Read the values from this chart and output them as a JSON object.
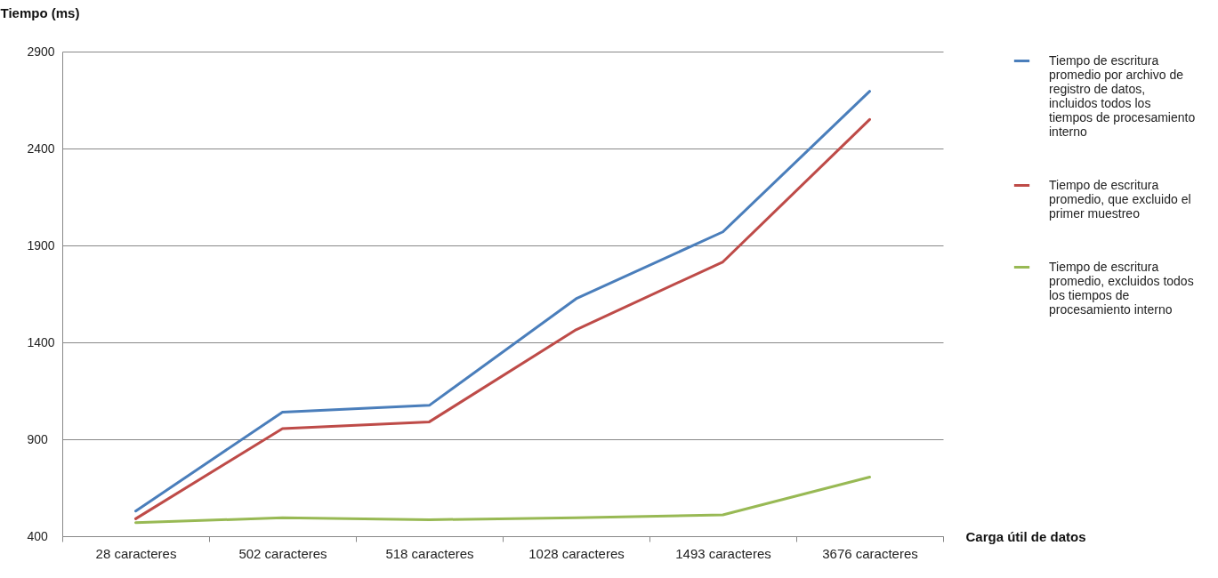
{
  "chart_data": {
    "type": "line",
    "xlabel": "Carga útil de datos",
    "ylabel": "Tiempo (ms)",
    "categories": [
      "28 caracteres",
      "502 caracteres",
      "518 caracteres",
      "1028 caracteres",
      "1493 caracteres",
      "3676 caracteres"
    ],
    "series": [
      {
        "name": "Tiempo de escritura promedio por archivo de registro de datos, incluidos todos los tiempos de procesamiento interno",
        "color": "#4a7ebb",
        "values": [
          530,
          1040,
          1075,
          1625,
          1970,
          2695
        ]
      },
      {
        "name": "Tiempo de escritura promedio, que excluido el primer muestreo",
        "color": "#be4b48",
        "values": [
          490,
          955,
          990,
          1465,
          1815,
          2550
        ]
      },
      {
        "name": "Tiempo de escritura promedio, excluidos todos los tiempos de procesamiento interno",
        "color": "#98b954",
        "values": [
          470,
          495,
          485,
          495,
          510,
          705
        ]
      }
    ],
    "ylim": [
      400,
      2900
    ],
    "yticks": [
      400,
      900,
      1400,
      1900,
      2400,
      2900
    ],
    "grid": "y",
    "legend": "right",
    "line_style": "solid",
    "marker": "none"
  }
}
